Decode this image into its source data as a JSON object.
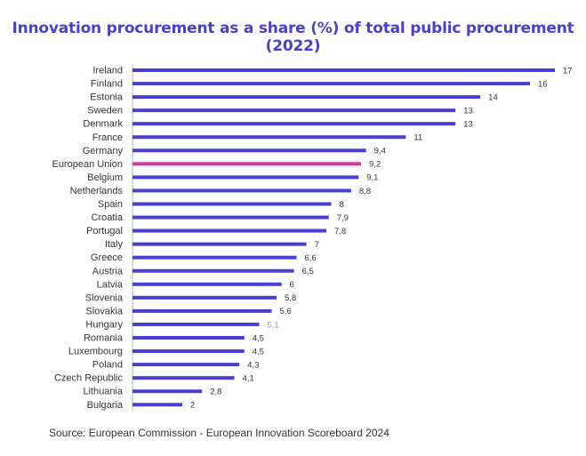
{
  "chart_data": {
    "type": "bar",
    "orientation": "horizontal",
    "title": "Innovation procurement as a share (%) of total public procurement (2022)",
    "categories": [
      "Ireland",
      "Finland",
      "Estonia",
      "Sweden",
      "Denmark",
      "France",
      "Germany",
      "European Union",
      "Belgium",
      "Netherlands",
      "Spain",
      "Croatia",
      "Portugal",
      "Italy",
      "Greece",
      "Austria",
      "Latvia",
      "Slovenia",
      "Slovakia",
      "Hungary",
      "Romania",
      "Luxembourg",
      "Poland",
      "Czech Republic",
      "Lithuania",
      "Bulgaria"
    ],
    "values": [
      17,
      16,
      14,
      13,
      13,
      11,
      9.4,
      9.2,
      9.1,
      8.8,
      8,
      7.9,
      7.8,
      7,
      6.6,
      6.5,
      6,
      5.8,
      5.6,
      5.1,
      4.5,
      4.5,
      4.3,
      4.1,
      2.8,
      2
    ],
    "value_labels": [
      "17",
      "16",
      "14",
      "13",
      "13",
      "11",
      "9,4",
      "9,2",
      "9,1",
      "8,8",
      "8",
      "7,9",
      "7,8",
      "7",
      "6,6",
      "6,5",
      "6",
      "5,8",
      "5,6",
      "5,1",
      "4,5",
      "4,5",
      "4,3",
      "4,1",
      "2,8",
      "2"
    ],
    "highlight": "European Union",
    "xlim": [
      0,
      17
    ],
    "grid": false,
    "legend": "none",
    "colors": {
      "bar": "#4a3fd0",
      "highlight": "#d23aa8",
      "title": "#4a3fd0",
      "value_label": "#333333",
      "value_label_muted": "#999999",
      "axis": "#bbbbbb"
    },
    "muted_value_label": "Hungary"
  },
  "source": "Source: European Commission - European Innovation Scoreboard 2024"
}
